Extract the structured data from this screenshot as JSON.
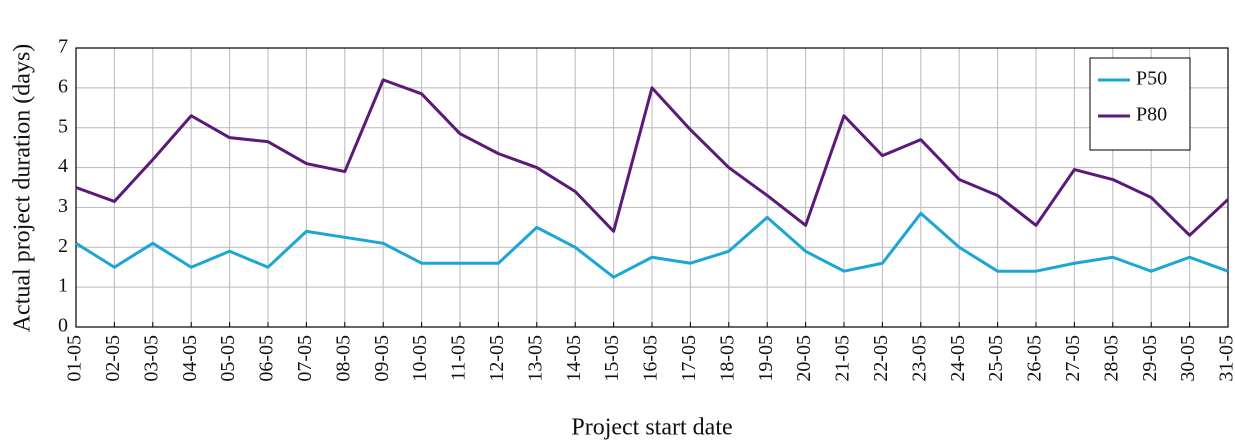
{
  "chart_data": {
    "type": "line",
    "xlabel": "Project start date",
    "ylabel": "Actual project duration (days)",
    "categories": [
      "01-05",
      "02-05",
      "03-05",
      "04-05",
      "05-05",
      "06-05",
      "07-05",
      "08-05",
      "09-05",
      "10-05",
      "11-05",
      "12-05",
      "13-05",
      "14-05",
      "15-05",
      "16-05",
      "17-05",
      "18-05",
      "19-05",
      "20-05",
      "21-05",
      "22-05",
      "23-05",
      "24-05",
      "25-05",
      "26-05",
      "27-05",
      "28-05",
      "29-05",
      "30-05",
      "31-05"
    ],
    "series": [
      {
        "name": "P50",
        "color": "#1ba6d6",
        "values": [
          2.1,
          1.5,
          2.1,
          1.5,
          1.9,
          1.5,
          2.4,
          2.25,
          2.1,
          1.6,
          1.6,
          1.6,
          2.5,
          2.0,
          1.25,
          1.75,
          1.6,
          1.9,
          2.75,
          1.9,
          1.4,
          1.6,
          2.85,
          2.0,
          1.4,
          1.4,
          1.6,
          1.75,
          1.4,
          1.75,
          1.4
        ]
      },
      {
        "name": "P80",
        "color": "#5b1a79",
        "values": [
          3.5,
          3.15,
          4.2,
          5.3,
          4.75,
          4.65,
          4.1,
          3.9,
          6.2,
          5.85,
          4.85,
          4.35,
          4.0,
          3.4,
          2.4,
          6.0,
          4.95,
          4.0,
          3.3,
          2.55,
          5.3,
          4.3,
          4.7,
          3.7,
          3.3,
          2.55,
          3.95,
          3.7,
          3.25,
          2.3,
          3.2
        ]
      }
    ],
    "ylim": [
      0,
      7
    ],
    "yticks": [
      0,
      1,
      2,
      3,
      4,
      5,
      6,
      7
    ],
    "grid": true,
    "legend": "upper right"
  }
}
